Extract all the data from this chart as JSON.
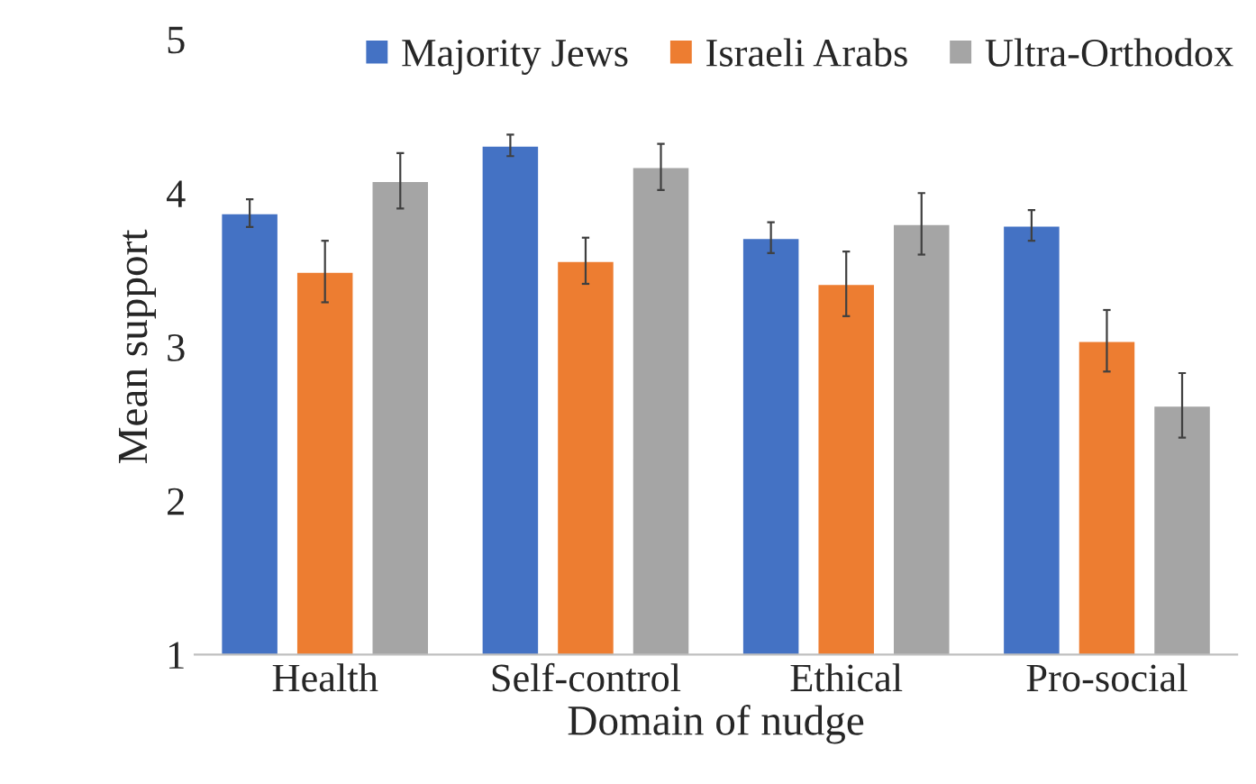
{
  "chart_data": {
    "type": "bar",
    "xlabel": "Domain of nudge",
    "ylabel": "Mean support",
    "categories": [
      "Health",
      "Self-control",
      "Ethical",
      "Pro-social"
    ],
    "series": [
      {
        "name": "Majority Jews",
        "color": "#4472c4",
        "values": [
          3.87,
          4.31,
          3.71,
          3.79
        ],
        "errors": [
          0.09,
          0.07,
          0.1,
          0.1
        ]
      },
      {
        "name": "Israeli Arabs",
        "color": "#ed7d31",
        "values": [
          3.49,
          3.56,
          3.41,
          3.04
        ],
        "errors": [
          0.2,
          0.15,
          0.21,
          0.2
        ]
      },
      {
        "name": "Ultra-Orthodox",
        "color": "#a5a5a5",
        "values": [
          4.08,
          4.17,
          3.8,
          2.62
        ],
        "errors": [
          0.18,
          0.15,
          0.2,
          0.21
        ]
      }
    ],
    "ylim": [
      1,
      5
    ],
    "yticks": [
      1,
      2,
      3,
      4,
      5
    ],
    "grid": false,
    "legend": "top"
  }
}
